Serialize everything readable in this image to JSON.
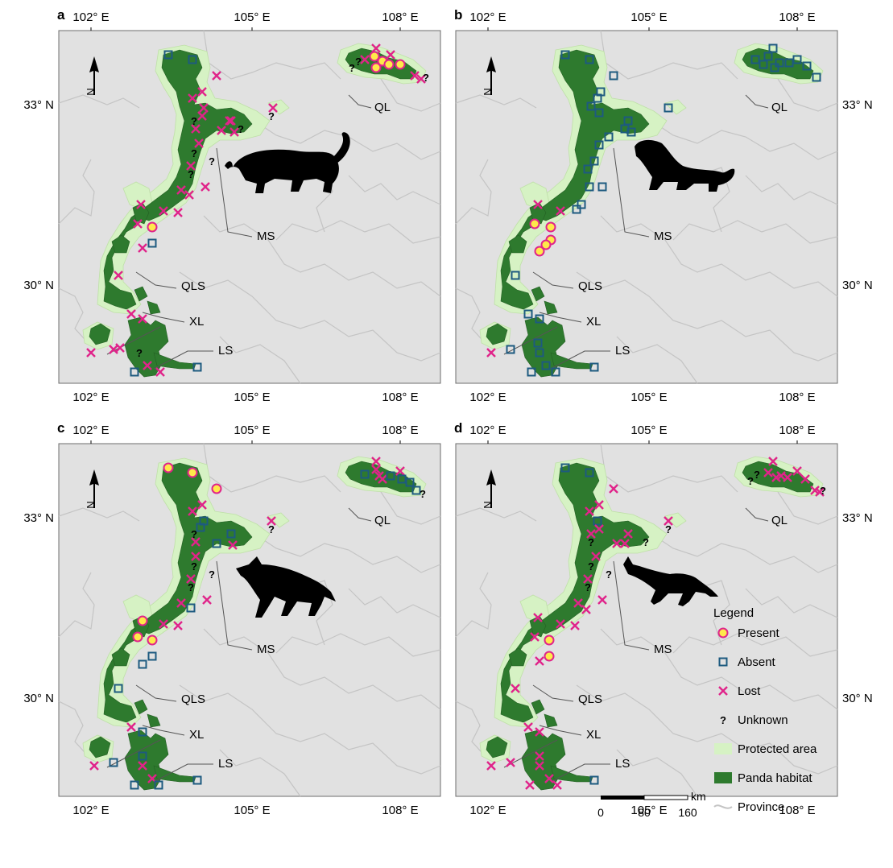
{
  "lon_ticks": [
    "102° E",
    "105° E",
    "108° E"
  ],
  "lat_ticks": [
    "33° N",
    "30° N"
  ],
  "north_label": "N",
  "region_labels": [
    "QL",
    "MS",
    "QLS",
    "XL",
    "LS"
  ],
  "legend": {
    "title": "Legend",
    "items": [
      "Present",
      "Absent",
      "Lost",
      "Unknown",
      "Protected area",
      "Panda habitat",
      "Province"
    ],
    "unknown_symbol": "?"
  },
  "scale_bar": {
    "unit": "km",
    "ticks": [
      "0",
      "80",
      "160"
    ]
  },
  "colors": {
    "present_fill": "#FFE94A",
    "present_stroke": "#E0248A",
    "absent": "#1D5A80",
    "lost": "#E0248A",
    "unknown": "#000000",
    "protected_area": "#D6F2C4",
    "panda_habitat": "#2E7A2E",
    "province_line": "#C4C4C4",
    "map_background": "#E1E1E1"
  },
  "panels": [
    {
      "label": "a",
      "animal": "leopard-silhouette"
    },
    {
      "label": "b",
      "animal": "snow-leopard-silhouette"
    },
    {
      "label": "c",
      "animal": "wolf-silhouette"
    },
    {
      "label": "d",
      "animal": "dhole-silhouette"
    }
  ]
}
